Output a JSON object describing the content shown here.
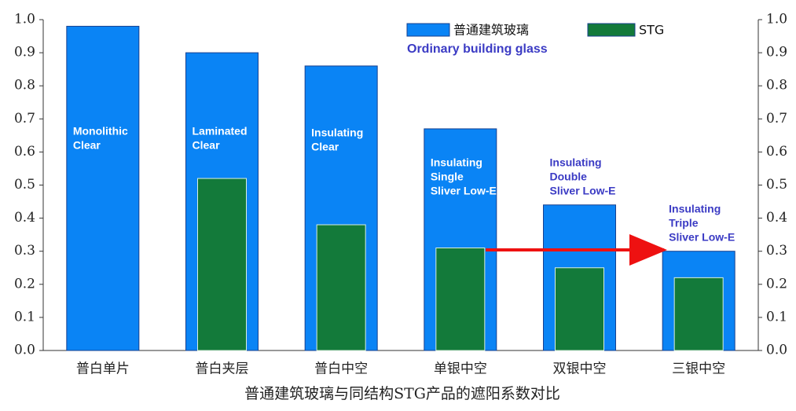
{
  "chart_data": {
    "type": "bar",
    "title": "普通建筑玻璃与同结构STG产品的遮阳系数对比",
    "subtitle": "Ordinary building glass",
    "categories": [
      "普白单片",
      "普白夹层",
      "普白中空",
      "单银中空",
      "双银中空",
      "三银中空"
    ],
    "series": [
      {
        "name": "普通建筑玻璃",
        "color": "#0a84f5",
        "values": [
          0.98,
          0.9,
          0.86,
          0.67,
          0.44,
          0.3
        ]
      },
      {
        "name": "STG",
        "color": "#137a3a",
        "values": [
          null,
          0.52,
          0.38,
          0.31,
          0.25,
          0.22
        ]
      }
    ],
    "bar_labels": [
      [
        "Monolithic",
        "Clear"
      ],
      [
        "Laminated",
        "Clear"
      ],
      [
        "Insulating",
        "Clear"
      ],
      [
        "Insulating",
        "Single",
        "Sliver Low-E"
      ],
      [
        "Insulating",
        "Double",
        "Sliver Low-E"
      ],
      [
        "Insulating",
        "Triple",
        "Sliver Low-E"
      ]
    ],
    "bar_label_colors": [
      "#ffffff",
      "#ffffff",
      "#ffffff",
      "#ffffff",
      "#3b3bc4",
      "#3b3bc4"
    ],
    "ylim": [
      0,
      1
    ],
    "yticks": [
      {
        "value": 0,
        "label": "0.0"
      },
      0.1,
      0.2,
      0.3,
      0.4,
      0.5,
      0.6,
      0.7,
      0.8,
      0.9,
      {
        "value": 1,
        "label": "1.0"
      }
    ],
    "grid": false
  }
}
